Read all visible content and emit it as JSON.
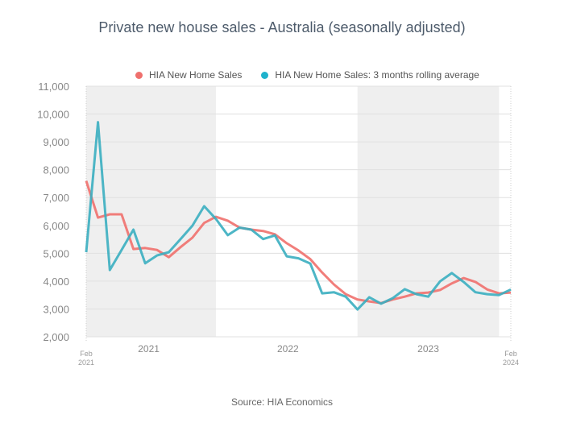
{
  "chart_data": {
    "type": "line",
    "title": "Private new house sales - Australia (seasonally adjusted)",
    "source": "Source: HIA Economics",
    "ylim": [
      2000,
      11000
    ],
    "yticks": [
      "2,000",
      "3,000",
      "4,000",
      "5,000",
      "6,000",
      "7,000",
      "8,000",
      "9,000",
      "10,000",
      "11,000"
    ],
    "ytick_values": [
      2000,
      3000,
      4000,
      5000,
      6000,
      7000,
      8000,
      9000,
      10000,
      11000
    ],
    "x_start": "Feb 2021",
    "x_end": "Feb 2024",
    "xticks": [
      {
        "label": "Feb",
        "sub": "2021",
        "index": 0
      },
      {
        "label": "2021",
        "index": 5.3
      },
      {
        "label": "2022",
        "index": 17.1
      },
      {
        "label": "2023",
        "index": 29
      },
      {
        "label": "Feb",
        "sub": "2024",
        "index": 36
      }
    ],
    "shaded_bands": [
      [
        0,
        11
      ],
      [
        23,
        35
      ]
    ],
    "legend_position": "top",
    "series": [
      {
        "name": "HIA New Home Sales",
        "color": "#ef706d",
        "values": [
          7600,
          6280,
          6400,
          6400,
          5150,
          5190,
          5120,
          4860,
          5220,
          5560,
          6090,
          6310,
          6170,
          5920,
          5850,
          5800,
          5680,
          5360,
          5100,
          4790,
          4310,
          3880,
          3530,
          3340,
          3270,
          3210,
          3340,
          3440,
          3560,
          3590,
          3680,
          3920,
          4110,
          3970,
          3700,
          3560,
          3590
        ]
      },
      {
        "name": "HIA New Home Sales: 3 months rolling average",
        "color": "#3aaec0",
        "values": [
          5040,
          9710,
          4400,
          5120,
          5850,
          4640,
          4920,
          5040,
          5510,
          5990,
          6690,
          6230,
          5650,
          5920,
          5850,
          5510,
          5640,
          4890,
          4820,
          4630,
          3560,
          3600,
          3440,
          2980,
          3420,
          3190,
          3390,
          3710,
          3530,
          3440,
          3990,
          4290,
          3970,
          3600,
          3530,
          3500,
          3700
        ]
      }
    ]
  }
}
